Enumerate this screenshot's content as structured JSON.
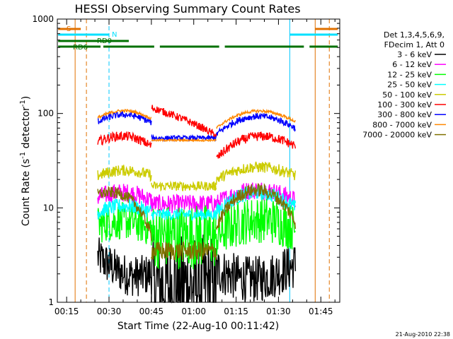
{
  "chart_data": {
    "type": "line",
    "title": "HESSI Observing Summary Count Rates",
    "xlabel": "Start Time (22-Aug-10 00:11:42)",
    "ylabel_main": "Count Rate (s",
    "ylabel_sup1": "-1",
    "ylabel_mid": " detector",
    "ylabel_sup2": "-1",
    "ylabel_end": ")",
    "y_scale": "log",
    "ylim": [
      1,
      1000
    ],
    "xlim_minutes": [
      11.7,
      111.7
    ],
    "x_ticks": [
      {
        "t": 15,
        "label": "00:15"
      },
      {
        "t": 30,
        "label": "00:30"
      },
      {
        "t": 45,
        "label": "00:45"
      },
      {
        "t": 60,
        "label": "01:00"
      },
      {
        "t": 75,
        "label": "01:15"
      },
      {
        "t": 90,
        "label": "01:30"
      },
      {
        "t": 105,
        "label": "01:45"
      }
    ],
    "y_ticks": [
      {
        "v": 1,
        "label": "1"
      },
      {
        "v": 10,
        "label": "10"
      },
      {
        "v": 100,
        "label": "100"
      },
      {
        "v": 1000,
        "label": "1000"
      }
    ],
    "legend_header": [
      "Det 1,3,4,5,6,9,",
      "FDecim 1, Att 0"
    ],
    "legend_placement": "right",
    "timestamp": "21-Aug-2010 22:38",
    "observing_flags": {
      "labels": {
        "s": "S",
        "n": "N",
        "rd0": "RD0",
        "rd6": "RD6"
      },
      "s_segments": [
        [
          12,
          20
        ],
        [
          103,
          111
        ]
      ],
      "n_segments": [
        [
          12,
          30
        ],
        [
          94,
          111
        ]
      ],
      "rd0_segments": [
        [
          12,
          37
        ]
      ],
      "rd6_segments": [
        [
          12,
          27
        ],
        [
          28,
          46
        ],
        [
          48,
          69
        ],
        [
          71,
          99
        ],
        [
          101,
          111
        ]
      ],
      "vlines": [
        {
          "t": 18,
          "color": "#e07000",
          "dashed": false
        },
        {
          "t": 22,
          "color": "#e07000",
          "dashed": true
        },
        {
          "t": 30,
          "color": "#00c8ff",
          "dashed": true
        },
        {
          "t": 94,
          "color": "#00c8ff",
          "dashed": false
        },
        {
          "t": 103,
          "color": "#e07000",
          "dashed": false
        },
        {
          "t": 108,
          "color": "#e07000",
          "dashed": true
        }
      ],
      "colors": {
        "s": "#e07000",
        "n": "#00e0ff",
        "rd": "#007000"
      }
    },
    "series": [
      {
        "name": "3 - 6 keV",
        "color": "#000000",
        "segments": [
          {
            "start": 26,
            "end": 45,
            "v0": 3.0,
            "v1": 2.0,
            "dip": 0.5,
            "bump": 0,
            "jitter": 0.22
          },
          {
            "start": 45,
            "end": 68,
            "v0": 1.5,
            "v1": 1.5,
            "dip": 0,
            "bump": 0,
            "jitter": 0.55
          },
          {
            "start": 68,
            "end": 96,
            "v0": 2.2,
            "v1": 2.5,
            "dip": 0.6,
            "bump": 0,
            "jitter": 0.25
          }
        ]
      },
      {
        "name": "6 - 12 keV",
        "color": "#ff00ff",
        "segments": [
          {
            "start": 26,
            "end": 45,
            "v0": 13,
            "v1": 12,
            "dip": 0,
            "bump": 2,
            "jitter": 0.1
          },
          {
            "start": 45,
            "end": 68,
            "v0": 11,
            "v1": 11,
            "dip": 0,
            "bump": 0,
            "jitter": 0.1
          },
          {
            "start": 68,
            "end": 96,
            "v0": 11,
            "v1": 12,
            "dip": 0,
            "bump": 4,
            "jitter": 0.1
          }
        ]
      },
      {
        "name": "12 - 25 keV",
        "color": "#00ff00",
        "segments": [
          {
            "start": 26,
            "end": 45,
            "v0": 6.5,
            "v1": 6,
            "dip": 0,
            "bump": 1,
            "jitter": 0.2
          },
          {
            "start": 45,
            "end": 68,
            "v0": 5.0,
            "v1": 5.0,
            "dip": 0,
            "bump": 0,
            "jitter": 0.35
          },
          {
            "start": 68,
            "end": 96,
            "v0": 5.0,
            "v1": 6.0,
            "dip": 0,
            "bump": 2,
            "jitter": 0.25
          }
        ]
      },
      {
        "name": "25 - 50 keV",
        "color": "#00ffff",
        "segments": [
          {
            "start": 26,
            "end": 45,
            "v0": 9,
            "v1": 9,
            "dip": 0,
            "bump": 1.5,
            "jitter": 0.08
          },
          {
            "start": 45,
            "end": 68,
            "v0": 8.5,
            "v1": 8.5,
            "dip": 0,
            "bump": 0,
            "jitter": 0.06
          },
          {
            "start": 68,
            "end": 96,
            "v0": 9,
            "v1": 10,
            "dip": 0,
            "bump": 5,
            "jitter": 0.08
          }
        ]
      },
      {
        "name": "50 - 100 keV",
        "color": "#cccc00",
        "segments": [
          {
            "start": 26,
            "end": 45,
            "v0": 22,
            "v1": 22,
            "dip": 0,
            "bump": 3,
            "jitter": 0.06
          },
          {
            "start": 45,
            "end": 68,
            "v0": 17,
            "v1": 17,
            "dip": 0,
            "bump": 0,
            "jitter": 0.05
          },
          {
            "start": 68,
            "end": 96,
            "v0": 20,
            "v1": 22,
            "dip": 0,
            "bump": 6,
            "jitter": 0.06
          }
        ]
      },
      {
        "name": "100 - 300 keV",
        "color": "#ff0000",
        "segments": [
          {
            "start": 26,
            "end": 45,
            "v0": 50,
            "v1": 45,
            "dip": 0,
            "bump": 10,
            "jitter": 0.05
          },
          {
            "start": 45,
            "end": 68,
            "v0": 115,
            "v1": 58,
            "dip": 0,
            "bump": 0,
            "jitter": 0.04
          },
          {
            "start": 68,
            "end": 96,
            "v0": 33,
            "v1": 45,
            "dip": 0,
            "bump": 18,
            "jitter": 0.05
          }
        ]
      },
      {
        "name": "300 - 800 keV",
        "color": "#0000ff",
        "segments": [
          {
            "start": 26,
            "end": 45,
            "v0": 82,
            "v1": 80,
            "dip": 0,
            "bump": 16,
            "jitter": 0.035
          },
          {
            "start": 45,
            "end": 68,
            "v0": 55,
            "v1": 55,
            "dip": 0,
            "bump": 0,
            "jitter": 0.025
          },
          {
            "start": 68,
            "end": 96,
            "v0": 60,
            "v1": 70,
            "dip": 0,
            "bump": 28,
            "jitter": 0.035
          }
        ]
      },
      {
        "name": "800 - 7000 keV",
        "color": "#ff8800",
        "segments": [
          {
            "start": 26,
            "end": 45,
            "v0": 90,
            "v1": 88,
            "dip": 0,
            "bump": 18,
            "jitter": 0.015
          },
          {
            "start": 45,
            "end": 68,
            "v0": 52,
            "v1": 52,
            "dip": 0,
            "bump": 0,
            "jitter": 0.01
          },
          {
            "start": 68,
            "end": 96,
            "v0": 70,
            "v1": 82,
            "dip": 0,
            "bump": 30,
            "jitter": 0.015
          }
        ]
      },
      {
        "name": "7000 - 20000 keV",
        "color": "#807000",
        "segments": [
          {
            "start": 26,
            "end": 45,
            "v0": 14,
            "v1": 5,
            "dip": 0,
            "bump": 4,
            "jitter": 0.06
          },
          {
            "start": 45,
            "end": 68,
            "v0": 3.5,
            "v1": 3.5,
            "dip": 0,
            "bump": 0,
            "jitter": 0.1
          },
          {
            "start": 68,
            "end": 96,
            "v0": 6,
            "v1": 7,
            "dip": 0,
            "bump": 9,
            "jitter": 0.07
          }
        ]
      }
    ]
  }
}
